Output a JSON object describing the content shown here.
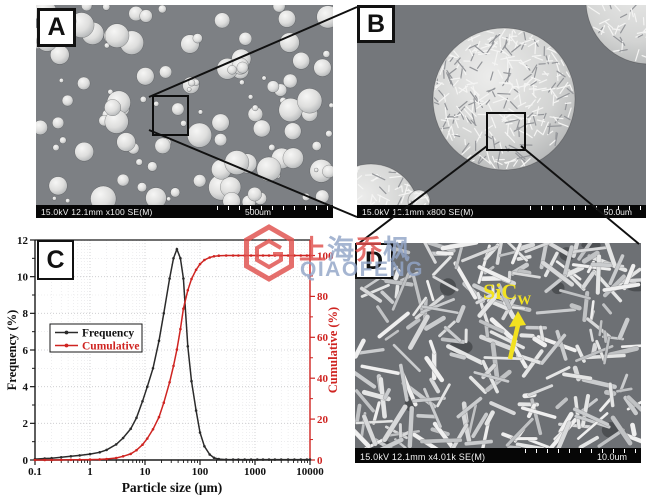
{
  "panels": {
    "a": {
      "label": "A",
      "info": "15.0kV 12.1mm x100 SE(M)",
      "scale": "500um"
    },
    "b": {
      "label": "B",
      "info": "15.0kV 12.1mm x800 SE(M)",
      "scale": "50.0um"
    },
    "c": {
      "label": "C"
    },
    "d": {
      "label": "D",
      "info": "15.0kV 12.1mm x4.01k SE(M)",
      "scale": "10.0um",
      "annotation": {
        "text": "SiC",
        "subscript": "W",
        "color": "#f2e120"
      }
    }
  },
  "watermark": {
    "logo_name": "qiaofeng-hexagon-logo",
    "cn": "上海乔枫",
    "cn_colors": [
      "#e0504d",
      "#92a5c8",
      "#e0504d",
      "#92a5c8"
    ],
    "en": "QIAOFENG",
    "red": "#e0504d",
    "blue": "#92a5c8"
  },
  "chart_data": {
    "type": "line",
    "x_scale": "log",
    "title": "",
    "xlabel": "Particle size (μm)",
    "ylabel_left": "Frequency (%)",
    "ylabel_right": "Cumulative (%)",
    "xlim": [
      0.1,
      10000
    ],
    "ylim_left": [
      0,
      12
    ],
    "ylim_right": [
      0,
      100
    ],
    "x_ticks": [
      "0.1",
      "1",
      "10",
      "100",
      "1000",
      "10000"
    ],
    "y_ticks_left": [
      0,
      2,
      4,
      6,
      8,
      10,
      12
    ],
    "y_ticks_right": [
      0,
      20,
      40,
      60,
      80,
      100
    ],
    "grid": "dotted",
    "legend_position": "left-middle",
    "x": [
      0.1,
      0.15,
      0.2,
      0.3,
      0.45,
      0.65,
      1,
      1.5,
      2,
      3,
      4,
      5.5,
      7,
      9,
      11,
      14,
      18,
      22,
      28,
      33,
      38,
      44,
      50,
      60,
      70,
      85,
      100,
      120,
      150,
      180,
      220,
      300,
      400,
      500,
      650,
      850,
      1100,
      1400,
      1800,
      2300,
      3000,
      4000,
      5200,
      6800,
      8800,
      10000
    ],
    "series": [
      {
        "name": "Frequency",
        "axis": "left",
        "color": "#2b2b2b",
        "values": [
          0.05,
          0.08,
          0.1,
          0.15,
          0.2,
          0.25,
          0.32,
          0.42,
          0.55,
          0.85,
          1.2,
          1.7,
          2.3,
          3.2,
          4.0,
          5.0,
          6.5,
          8.0,
          9.9,
          11.0,
          11.5,
          11.0,
          9.9,
          6.2,
          4.3,
          2.7,
          1.5,
          0.75,
          0.3,
          0.12,
          0.05,
          0.02,
          0.02,
          0.02,
          0.02,
          0.02,
          0.02,
          0.02,
          0.02,
          0.02,
          0.02,
          0.02,
          0.02,
          0.02,
          0.02,
          0.02
        ]
      },
      {
        "name": "Cumulative",
        "axis": "right",
        "color": "#cf2421",
        "values": [
          0,
          0,
          0,
          0.05,
          0.1,
          0.15,
          0.2,
          0.3,
          0.5,
          1,
          1.8,
          3,
          4.8,
          7.5,
          10.5,
          15,
          21,
          28,
          38,
          46,
          54,
          64,
          74,
          83,
          88.5,
          93,
          95.8,
          97.8,
          99,
          99.6,
          99.9,
          100,
          100,
          100,
          100,
          100,
          100,
          100,
          100,
          100,
          100,
          100,
          100,
          100,
          100,
          100
        ]
      }
    ]
  }
}
